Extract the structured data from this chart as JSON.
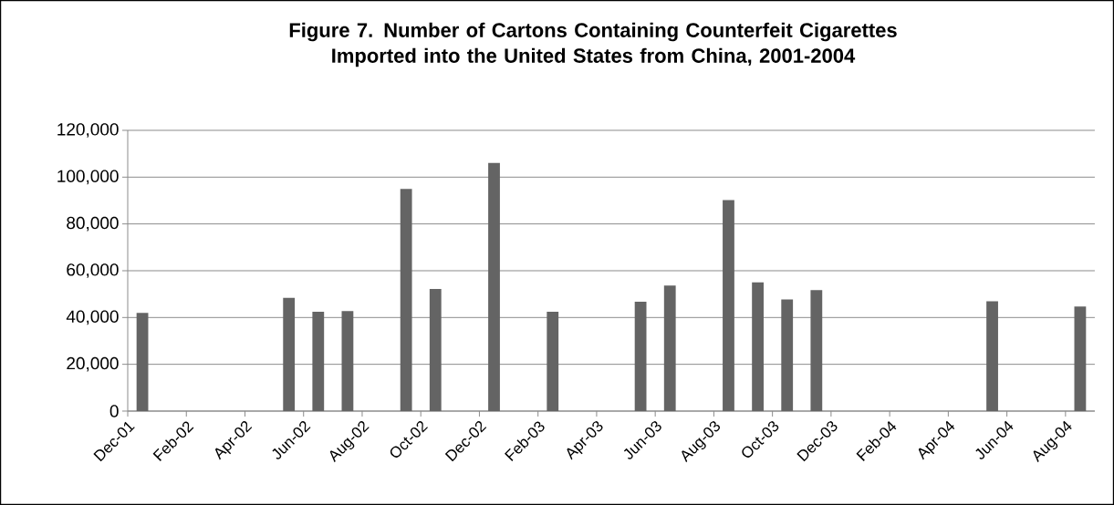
{
  "chart_data": {
    "type": "bar",
    "title": "Figure 7. Number of Cartons Containing Counterfeit Cigarettes Imported into the United States from China, 2001-2004",
    "categories": [
      "Dec-01",
      null,
      "Feb-02",
      null,
      "Apr-02",
      null,
      "Jun-02",
      null,
      "Aug-02",
      null,
      "Oct-02",
      null,
      "Dec-02",
      null,
      "Feb-03",
      null,
      "Apr-03",
      null,
      "Jun-03",
      null,
      "Aug-03",
      null,
      "Oct-03",
      null,
      "Dec-03",
      null,
      "Feb-04",
      null,
      "Apr-04",
      null,
      "Jun-04",
      null,
      "Aug-04"
    ],
    "values": [
      42000,
      null,
      null,
      null,
      null,
      48400,
      42500,
      42800,
      null,
      95000,
      52200,
      null,
      106100,
      null,
      42500,
      null,
      null,
      46700,
      53700,
      null,
      90200,
      55000,
      47700,
      51700,
      null,
      null,
      null,
      null,
      null,
      46900,
      null,
      null,
      44700
    ],
    "color": "#646464",
    "ylim": [
      0,
      120000
    ],
    "yticks": [
      0,
      {
        "value": 20000,
        "label": "20,000"
      },
      {
        "value": 40000,
        "label": "40,000"
      },
      {
        "value": 60000,
        "label": "60,000"
      },
      {
        "value": 80000,
        "label": "80,000"
      },
      {
        "value": 100000,
        "label": "100,000"
      },
      {
        "value": 120000,
        "label": "120,000"
      }
    ],
    "grid": "y"
  }
}
